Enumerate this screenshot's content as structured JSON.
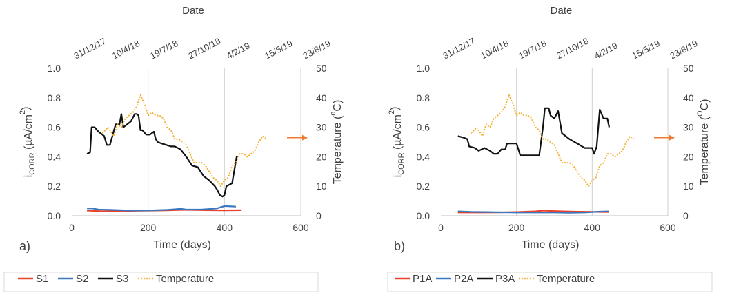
{
  "chart_data": [
    {
      "type": "line",
      "panel_label": "a)",
      "top_axis_label": "Date",
      "top_tick_labels": [
        "31/12/17",
        "10/4/18",
        "19/7/18",
        "27/10/18",
        "4/2/19",
        "15/5/19",
        "23/8/19"
      ],
      "xlabel": "Time (days)",
      "ylabel": "iCORR (µA/cm²)",
      "ylabel_main": "i",
      "ylabel_sub": "CORR",
      "ylabel_rest": " (µA/cm",
      "ylabel_sup": "2",
      "ylabel_end": ")",
      "y2label": "Temperature (ºC)",
      "y2label_main": "Temperature (",
      "y2label_sup": "o",
      "y2label_end": "C)",
      "xlim": [
        0,
        600
      ],
      "ylim": [
        0,
        1.0
      ],
      "y2lim": [
        0,
        50
      ],
      "x_ticks": [
        "0",
        "200",
        "400",
        "600"
      ],
      "y_ticks": [
        "0.0",
        "0.2",
        "0.4",
        "0.6",
        "0.8",
        "1.0"
      ],
      "y2_ticks": [
        "0",
        "10",
        "20",
        "30",
        "40",
        "50"
      ],
      "grid": "vertical",
      "legend_position": "bottom",
      "series": [
        {
          "name": "S1",
          "color": "#e8412c",
          "style": "solid",
          "axis": "left",
          "x": [
            40,
            60,
            80,
            100,
            150,
            200,
            250,
            300,
            350,
            400,
            445
          ],
          "y": [
            0.035,
            0.033,
            0.03,
            0.031,
            0.033,
            0.035,
            0.037,
            0.04,
            0.038,
            0.037,
            0.038
          ]
        },
        {
          "name": "S2",
          "color": "#3a78c0",
          "style": "solid",
          "axis": "left",
          "x": [
            40,
            55,
            70,
            100,
            150,
            200,
            250,
            285,
            300,
            340,
            380,
            400,
            430
          ],
          "y": [
            0.05,
            0.05,
            0.042,
            0.04,
            0.036,
            0.036,
            0.04,
            0.047,
            0.042,
            0.042,
            0.05,
            0.066,
            0.062
          ]
        },
        {
          "name": "S3",
          "color": "#111111",
          "style": "solid",
          "axis": "left",
          "x": [
            40,
            48,
            52,
            60,
            70,
            85,
            92,
            100,
            115,
            125,
            130,
            135,
            140,
            155,
            165,
            170,
            175,
            180,
            185,
            195,
            205,
            215,
            220,
            225,
            235,
            260,
            270,
            285,
            300,
            315,
            330,
            345,
            360,
            375,
            380,
            388,
            395,
            400,
            405,
            412,
            420,
            432,
            435
          ],
          "y": [
            0.42,
            0.43,
            0.6,
            0.6,
            0.57,
            0.54,
            0.48,
            0.48,
            0.62,
            0.62,
            0.69,
            0.6,
            0.61,
            0.64,
            0.69,
            0.69,
            0.68,
            0.58,
            0.58,
            0.55,
            0.55,
            0.57,
            0.52,
            0.5,
            0.49,
            0.47,
            0.47,
            0.45,
            0.4,
            0.34,
            0.33,
            0.27,
            0.24,
            0.2,
            0.18,
            0.14,
            0.13,
            0.14,
            0.2,
            0.21,
            0.22,
            0.4,
            0.4
          ]
        },
        {
          "name": "Temperature",
          "color": "#f2b134",
          "style": "dotted",
          "axis": "right",
          "x": [
            80,
            95,
            110,
            120,
            130,
            140,
            150,
            160,
            170,
            180,
            190,
            200,
            210,
            220,
            230,
            240,
            250,
            260,
            270,
            280,
            290,
            300,
            310,
            320,
            330,
            340,
            350,
            360,
            370,
            380,
            390,
            400,
            410,
            420,
            430,
            440,
            450,
            460,
            470,
            480,
            490,
            500,
            510
          ],
          "y": [
            28,
            30,
            27,
            31,
            30,
            33,
            34,
            35,
            37,
            41,
            38,
            34,
            35,
            34,
            34,
            33,
            30,
            29,
            26,
            26,
            25,
            24,
            21,
            18,
            18,
            18,
            17,
            15,
            13,
            12,
            10,
            12,
            13,
            17,
            18,
            21,
            21,
            20,
            21,
            22,
            25,
            27,
            26
          ]
        }
      ],
      "arrow_color": "#ed7d31",
      "legend": [
        {
          "label": "S1",
          "color": "#e8412c",
          "style": "solid"
        },
        {
          "label": "S2",
          "color": "#3a78c0",
          "style": "solid"
        },
        {
          "label": "S3",
          "color": "#111111",
          "style": "solid"
        },
        {
          "label": "Temperature",
          "color": "#f2b134",
          "style": "dotted"
        }
      ]
    },
    {
      "type": "line",
      "panel_label": "b)",
      "top_axis_label": "Date",
      "top_tick_labels": [
        "31/12/17",
        "10/4/18",
        "19/7/18",
        "27/10/18",
        "4/2/19",
        "15/5/19",
        "23/8/19"
      ],
      "xlabel": "Time (days)",
      "ylabel": "iCORR (µA/cm²)",
      "ylabel_main": "i",
      "ylabel_sub": "CORR",
      "ylabel_rest": " (µA/cm",
      "ylabel_sup": "2",
      "ylabel_end": ")",
      "y2label": "Temperature (ºC)",
      "y2label_main": "Temperature (",
      "y2label_sup": "O",
      "y2label_end": "C)",
      "xlim": [
        0,
        600
      ],
      "ylim": [
        0,
        1.0
      ],
      "y2lim": [
        0,
        50
      ],
      "x_ticks": [
        "0",
        "200",
        "400",
        "600"
      ],
      "y_ticks": [
        "0.0",
        "0.2",
        "0.4",
        "0.6",
        "0.8",
        "1.0"
      ],
      "y2_ticks": [
        "0",
        "10",
        "20",
        "30",
        "40",
        "50"
      ],
      "grid": "vertical",
      "legend_position": "bottom",
      "series": [
        {
          "name": "P1A",
          "color": "#e8412c",
          "style": "solid",
          "axis": "left",
          "x": [
            45,
            100,
            150,
            200,
            250,
            270,
            300,
            350,
            400,
            445
          ],
          "y": [
            0.022,
            0.022,
            0.023,
            0.025,
            0.03,
            0.035,
            0.032,
            0.028,
            0.026,
            0.025
          ]
        },
        {
          "name": "P2A",
          "color": "#3a78c0",
          "style": "solid",
          "axis": "left",
          "x": [
            45,
            80,
            120,
            200,
            260,
            300,
            340,
            380,
            420,
            445
          ],
          "y": [
            0.03,
            0.026,
            0.025,
            0.022,
            0.022,
            0.022,
            0.02,
            0.022,
            0.028,
            0.03
          ]
        },
        {
          "name": "P3A",
          "color": "#111111",
          "style": "solid",
          "axis": "left",
          "x": [
            45,
            60,
            70,
            75,
            90,
            100,
            115,
            130,
            140,
            150,
            160,
            170,
            175,
            200,
            210,
            215,
            220,
            235,
            260,
            270,
            275,
            285,
            290,
            300,
            310,
            320,
            340,
            360,
            380,
            395,
            400,
            405,
            412,
            420,
            430,
            440,
            445
          ],
          "y": [
            0.54,
            0.53,
            0.52,
            0.47,
            0.46,
            0.44,
            0.46,
            0.44,
            0.42,
            0.42,
            0.45,
            0.45,
            0.49,
            0.49,
            0.41,
            0.41,
            0.41,
            0.41,
            0.41,
            0.6,
            0.73,
            0.73,
            0.68,
            0.66,
            0.71,
            0.56,
            0.52,
            0.49,
            0.46,
            0.46,
            0.46,
            0.42,
            0.47,
            0.72,
            0.66,
            0.66,
            0.6
          ]
        },
        {
          "name": "Temperature",
          "color": "#f2b134",
          "style": "dotted",
          "axis": "right",
          "x": [
            80,
            95,
            110,
            120,
            130,
            140,
            150,
            160,
            170,
            180,
            190,
            200,
            210,
            220,
            230,
            240,
            250,
            260,
            270,
            280,
            290,
            300,
            310,
            320,
            330,
            340,
            350,
            360,
            370,
            380,
            390,
            400,
            410,
            420,
            430,
            440,
            450,
            460,
            470,
            480,
            490,
            500,
            510
          ],
          "y": [
            28,
            30,
            27,
            31,
            30,
            33,
            34,
            35,
            37,
            41,
            38,
            34,
            35,
            34,
            34,
            33,
            30,
            29,
            26,
            26,
            25,
            24,
            21,
            18,
            18,
            18,
            17,
            15,
            13,
            12,
            10,
            12,
            13,
            17,
            18,
            21,
            21,
            20,
            21,
            22,
            25,
            27,
            26
          ]
        }
      ],
      "arrow_color": "#ed7d31",
      "legend": [
        {
          "label": "P1A",
          "color": "#e8412c",
          "style": "solid"
        },
        {
          "label": "P2A",
          "color": "#3a78c0",
          "style": "solid"
        },
        {
          "label": "P3A",
          "color": "#111111",
          "style": "solid"
        },
        {
          "label": "Temperature",
          "color": "#f2b134",
          "style": "dotted"
        }
      ]
    }
  ]
}
